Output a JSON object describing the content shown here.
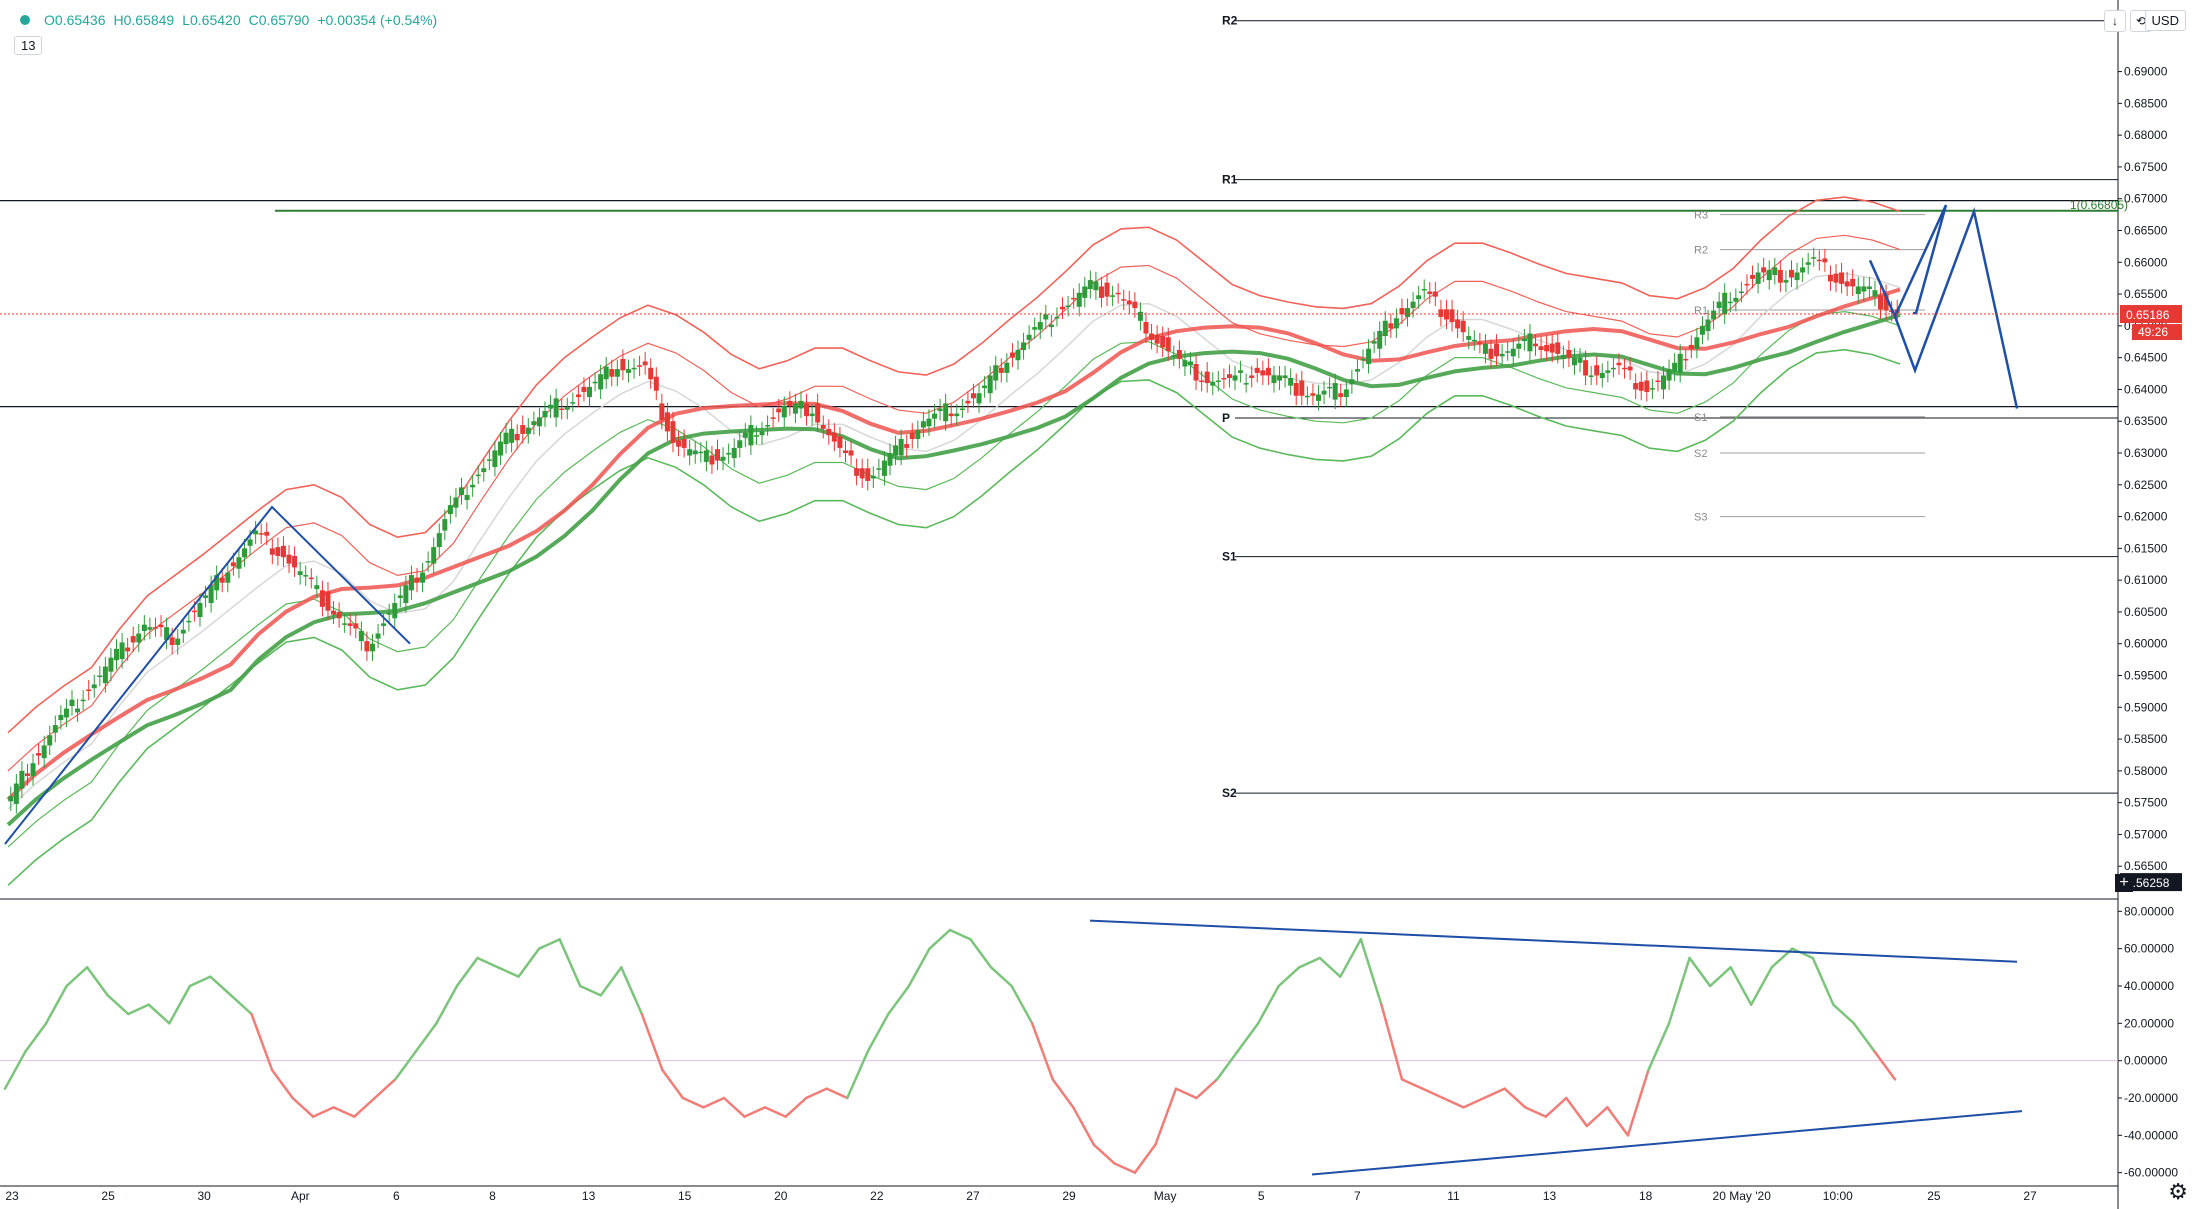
{
  "header": {
    "open": "O0.65436",
    "high": "H0.65849",
    "low": "L0.65420",
    "close": "C0.65790",
    "change": "+0.00354 (+0.54%)",
    "badge": "13",
    "currency": "USD"
  },
  "colors": {
    "up": "#26a69a",
    "candle_up": "#2e9a3a",
    "candle_down": "#e53935",
    "bb_upper": "#f0625a",
    "bb_lower": "#5cb85c",
    "ma_red": "#ef5350",
    "ma_green": "#43a047",
    "trend": "#1f4fa6",
    "target_line": "#2e7d32",
    "price_tag": "#e53935"
  },
  "chart_data": [
    {
      "type": "candlestick",
      "ylim": [
        0.56,
        0.7
      ],
      "y_ticks": [
        "0.69000",
        "0.68500",
        "0.68000",
        "0.67500",
        "0.67000",
        "0.66500",
        "0.66000",
        "0.65500",
        "0.65000",
        "0.64500",
        "0.64000",
        "0.63500",
        "0.63000",
        "0.62500",
        "0.62000",
        "0.61500",
        "0.61000",
        "0.60500",
        "0.60000",
        "0.59500",
        "0.59000",
        "0.58500",
        "0.58000",
        "0.57500",
        "0.57000",
        "0.56500"
      ],
      "x_ticks": [
        "23",
        "25",
        "30",
        "Apr",
        "6",
        "8",
        "13",
        "15",
        "20",
        "22",
        "27",
        "29",
        "May",
        "5",
        "7",
        "11",
        "13",
        "18",
        "20 May '20",
        "10:00",
        "25",
        "27"
      ],
      "price_tag": "0.65186",
      "countdown": "49:26",
      "crosshair_price": "0.56258",
      "target_label": "1(0.66805)",
      "pivots": [
        {
          "label": "R2",
          "value": 0.698
        },
        {
          "label": "R1",
          "value": 0.673
        },
        {
          "label": "P",
          "value": 0.6355
        },
        {
          "label": "S1",
          "value": 0.6137
        },
        {
          "label": "S2",
          "value": 0.5765
        }
      ],
      "minor_pivots": [
        {
          "label": "R3",
          "value": 0.6675
        },
        {
          "label": "R2",
          "value": 0.662
        },
        {
          "label": "R1",
          "value": 0.6525
        },
        {
          "label": "S1",
          "value": 0.6357
        },
        {
          "label": "S2",
          "value": 0.63
        },
        {
          "label": "S3",
          "value": 0.62
        }
      ],
      "horizontal_levels": [
        0.6697,
        0.6373
      ],
      "target_level": 0.6681,
      "close_path": [
        0.574,
        0.582,
        0.588,
        0.593,
        0.598,
        0.603,
        0.601,
        0.606,
        0.612,
        0.617,
        0.614,
        0.609,
        0.604,
        0.6,
        0.606,
        0.612,
        0.621,
        0.627,
        0.632,
        0.635,
        0.638,
        0.64,
        0.644,
        0.643,
        0.632,
        0.629,
        0.63,
        0.634,
        0.637,
        0.637,
        0.63,
        0.626,
        0.63,
        0.635,
        0.637,
        0.639,
        0.645,
        0.649,
        0.653,
        0.656,
        0.655,
        0.65,
        0.645,
        0.642,
        0.641,
        0.643,
        0.641,
        0.639,
        0.64,
        0.646,
        0.652,
        0.655,
        0.651,
        0.646,
        0.646,
        0.648,
        0.645,
        0.643,
        0.643,
        0.64,
        0.643,
        0.65,
        0.655,
        0.658,
        0.658,
        0.66,
        0.657,
        0.655,
        0.652
      ]
    },
    {
      "type": "line",
      "name": "oscillator",
      "ylim": [
        -65,
        85
      ],
      "y_ticks": [
        "80.00000",
        "60.00000",
        "40.00000",
        "20.00000",
        "0.00000",
        "-20.00000",
        "-40.00000",
        "-60.00000"
      ],
      "values": [
        -15,
        5,
        20,
        40,
        50,
        35,
        25,
        30,
        20,
        40,
        45,
        35,
        25,
        -5,
        -20,
        -30,
        -25,
        -30,
        -20,
        -10,
        5,
        20,
        40,
        55,
        50,
        45,
        60,
        65,
        40,
        35,
        50,
        25,
        -5,
        -20,
        -25,
        -20,
        -30,
        -25,
        -30,
        -20,
        -15,
        -20,
        5,
        25,
        40,
        60,
        70,
        65,
        50,
        40,
        20,
        -10,
        -25,
        -45,
        -55,
        -60,
        -45,
        -15,
        -20,
        -10,
        5,
        20,
        40,
        50,
        55,
        45,
        65,
        30,
        -10,
        -15,
        -20,
        -25,
        -20,
        -15,
        -25,
        -30,
        -20,
        -35,
        -25,
        -40,
        -5,
        20,
        55,
        40,
        50,
        30,
        50,
        60,
        55,
        30,
        20,
        5,
        -10
      ]
    }
  ]
}
